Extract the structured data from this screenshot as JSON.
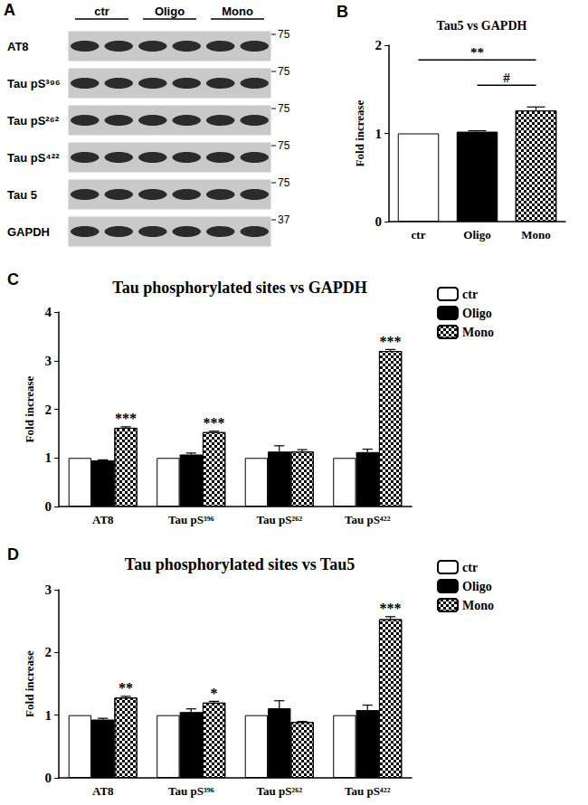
{
  "blot": {
    "panel": "A",
    "groups": [
      "ctr",
      "Oligo",
      "Mono"
    ],
    "rows": [
      {
        "label": "AT8",
        "marker": 75
      },
      {
        "label": "Tau pS³⁹⁶",
        "marker": 75
      },
      {
        "label": "Tau pS²⁶²",
        "marker": 75
      },
      {
        "label": "Tau pS⁴²²",
        "marker": 75
      },
      {
        "label": "Tau 5",
        "marker": 75
      },
      {
        "label": "GAPDH",
        "marker": 37
      }
    ]
  },
  "chart_data": [
    {
      "panel": "B",
      "type": "bar",
      "title": "Tau5 vs GAPDH",
      "y_label": "Fold increase",
      "categories": [
        "ctr",
        "Oligo",
        "Mono"
      ],
      "values": [
        1,
        1.02,
        1.26
      ],
      "errors": [
        0,
        0.01,
        0.04
      ],
      "colors": [
        "#ffffff",
        "#000000",
        "#808080"
      ],
      "comparisons": [
        {
          "from": "ctr",
          "to": "Mono",
          "label": "**"
        },
        {
          "from": "Oligo",
          "to": "Mono",
          "label": "#"
        }
      ],
      "ylim": [
        0,
        2
      ],
      "yticks": [
        0,
        1,
        2
      ],
      "grid": false
    },
    {
      "panel": "C",
      "type": "bar",
      "title": "Tau phosphorylated sites vs GAPDH",
      "y_label": "Fold increase",
      "categories": [
        "AT8",
        "Tau pS³⁹⁶",
        "Tau pS²⁶²",
        "Tau pS⁴²²"
      ],
      "series": [
        {
          "name": "ctr",
          "color": "#ffffff",
          "values": [
            1,
            1,
            1,
            1
          ],
          "errors": [
            0,
            0,
            0,
            0
          ]
        },
        {
          "name": "Oligo",
          "color": "#000000",
          "values": [
            0.95,
            1.07,
            1.13,
            1.12
          ],
          "errors": [
            0.01,
            0.03,
            0.12,
            0.06
          ]
        },
        {
          "name": "Mono",
          "color": "#808080",
          "values": [
            1.62,
            1.53,
            1.13,
            3.2
          ],
          "errors": [
            0.02,
            0.02,
            0.04,
            0.03
          ],
          "significance": [
            "***",
            "***",
            null,
            "***"
          ]
        }
      ],
      "ylim": [
        0,
        4
      ],
      "yticks": [
        0,
        1,
        2,
        3,
        4
      ],
      "grid": false,
      "legend": "top-right"
    },
    {
      "panel": "D",
      "type": "bar",
      "title": "Tau phosphorylated sites vs Tau5",
      "y_label": "Fold increase",
      "categories": [
        "AT8",
        "Tau pS³⁹⁶",
        "Tau pS²⁶²",
        "Tau pS⁴²²"
      ],
      "series": [
        {
          "name": "ctr",
          "color": "#ffffff",
          "values": [
            1,
            1,
            1,
            1
          ],
          "errors": [
            0,
            0,
            0,
            0
          ]
        },
        {
          "name": "Oligo",
          "color": "#000000",
          "values": [
            0.93,
            1.05,
            1.11,
            1.08
          ],
          "errors": [
            0.02,
            0.05,
            0.12,
            0.08
          ]
        },
        {
          "name": "Mono",
          "color": "#808080",
          "values": [
            1.28,
            1.2,
            0.89,
            2.53
          ],
          "errors": [
            0.02,
            0.02,
            0.01,
            0.04
          ],
          "significance": [
            "**",
            "*",
            null,
            "***"
          ]
        }
      ],
      "ylim": [
        0,
        3
      ],
      "yticks": [
        0,
        1,
        2,
        3
      ],
      "grid": false,
      "legend": "top-right"
    }
  ]
}
